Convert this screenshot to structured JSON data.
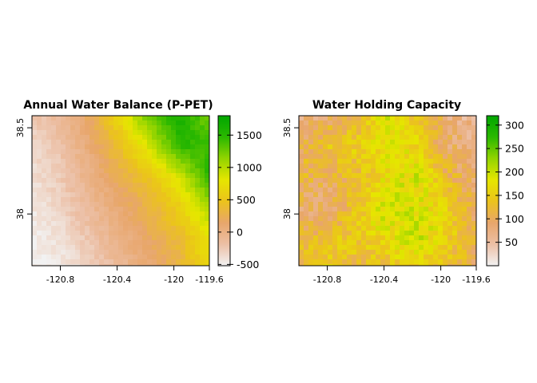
{
  "chart_data": [
    {
      "type": "heatmap",
      "title": "Annual Water Balance (P-PET)",
      "xlabel": "",
      "ylabel": "",
      "xlim": [
        -121.0,
        -119.75
      ],
      "ylim": [
        37.7,
        38.57
      ],
      "x_ticks": [
        -120.8,
        -120.4,
        -120,
        -119.6
      ],
      "y_ticks": [
        38,
        38.5
      ],
      "legend": "right",
      "grid": false,
      "colorbar": {
        "min": -520,
        "max": 1800,
        "ticks": [
          -500,
          0,
          500,
          1000,
          1500
        ],
        "colors": [
          "#f2f2f2",
          "#ecbfa5",
          "#e8a66b",
          "#ebc31c",
          "#e6e600",
          "#93d400",
          "#2ab800",
          "#00a600"
        ]
      },
      "field": {
        "grid": "coarse 7x6 sample, rows north to south, columns west to east, values in mm",
        "values": [
          [
            -250,
            -100,
            200,
            700,
            1300,
            1600,
            1200
          ],
          [
            -350,
            -200,
            100,
            450,
            900,
            1500,
            1400
          ],
          [
            -400,
            -250,
            0,
            250,
            500,
            900,
            1500
          ],
          [
            -450,
            -300,
            -100,
            100,
            300,
            600,
            1100
          ],
          [
            -480,
            -400,
            -200,
            0,
            200,
            400,
            800
          ],
          [
            -500,
            -450,
            -300,
            -100,
            100,
            300,
            700
          ]
        ]
      }
    },
    {
      "type": "heatmap",
      "title": "Water Holding Capacity",
      "xlabel": "",
      "ylabel": "",
      "xlim": [
        -121.0,
        -119.75
      ],
      "ylim": [
        37.7,
        38.57
      ],
      "x_ticks": [
        -120.8,
        -120.4,
        -120,
        -119.6
      ],
      "y_ticks": [
        38,
        38.5
      ],
      "legend": "right",
      "grid": false,
      "colorbar": {
        "min": 0,
        "max": 320,
        "ticks": [
          50,
          100,
          150,
          200,
          250,
          300
        ],
        "colors": [
          "#f2f2f2",
          "#ecbfa5",
          "#e8a66b",
          "#ebc31c",
          "#e6e600",
          "#93d400",
          "#2ab800",
          "#00a600"
        ]
      },
      "field": {
        "grid": "coarse 7x6 sample, rows north to south, columns west to east, values in mm",
        "values": [
          [
            70,
            90,
            120,
            200,
            140,
            80,
            60
          ],
          [
            100,
            140,
            150,
            180,
            160,
            90,
            70
          ],
          [
            120,
            100,
            130,
            170,
            190,
            120,
            80
          ],
          [
            90,
            80,
            140,
            200,
            180,
            160,
            90
          ],
          [
            110,
            130,
            150,
            170,
            200,
            150,
            110
          ],
          [
            130,
            150,
            120,
            140,
            160,
            130,
            100
          ]
        ]
      }
    }
  ]
}
